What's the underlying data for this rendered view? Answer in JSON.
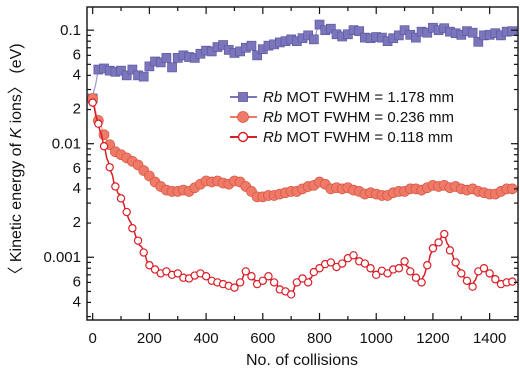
{
  "chart_data": {
    "type": "line",
    "xlabel": "No. of collisions",
    "ylabel_parts": [
      "〈 Kinetic energy of ",
      "K",
      " ions〉 (eV)"
    ],
    "xlim": [
      -20,
      1500
    ],
    "ylim": [
      0.00028,
      0.16
    ],
    "yscale": "log",
    "grid": false,
    "legend_position": "right",
    "x_ticks": [
      0,
      200,
      400,
      600,
      800,
      1000,
      1200,
      1400
    ],
    "x_tick_labels": [
      "0",
      "200",
      "400",
      "600",
      "800",
      "1000",
      "1200",
      "1400"
    ],
    "y_major_ticks": [
      0.001,
      0.01,
      0.1
    ],
    "y_major_labels": [
      "0.001",
      "0.01",
      "0.1"
    ],
    "y_minor_labeled": [
      {
        "value": 0.0004,
        "label": "4"
      },
      {
        "value": 0.0006,
        "label": "6"
      },
      {
        "value": 0.002,
        "label": "2"
      },
      {
        "value": 0.004,
        "label": "4"
      },
      {
        "value": 0.006,
        "label": "6"
      },
      {
        "value": 0.02,
        "label": "2"
      },
      {
        "value": 0.04,
        "label": "4"
      },
      {
        "value": 0.06,
        "label": "6"
      }
    ],
    "series": [
      {
        "name_parts": [
          "Rb",
          " MOT FWHM = 1.178 mm"
        ],
        "color": "#7b76bc",
        "marker": "square",
        "x": [
          0,
          20,
          40,
          60,
          80,
          100,
          120,
          140,
          160,
          180,
          200,
          220,
          240,
          260,
          280,
          300,
          320,
          340,
          360,
          380,
          400,
          420,
          440,
          460,
          480,
          500,
          520,
          540,
          560,
          580,
          600,
          620,
          640,
          660,
          680,
          700,
          720,
          740,
          760,
          780,
          800,
          820,
          840,
          860,
          880,
          900,
          920,
          940,
          960,
          980,
          1000,
          1020,
          1040,
          1060,
          1080,
          1100,
          1120,
          1140,
          1160,
          1180,
          1200,
          1220,
          1240,
          1260,
          1280,
          1300,
          1320,
          1340,
          1360,
          1380,
          1400,
          1420,
          1440,
          1460,
          1480
        ],
        "y": [
          0.025,
          0.045,
          0.046,
          0.044,
          0.043,
          0.044,
          0.04,
          0.045,
          0.04,
          0.039,
          0.048,
          0.053,
          0.052,
          0.057,
          0.047,
          0.057,
          0.06,
          0.058,
          0.057,
          0.062,
          0.066,
          0.065,
          0.071,
          0.074,
          0.067,
          0.063,
          0.065,
          0.07,
          0.073,
          0.06,
          0.068,
          0.073,
          0.075,
          0.078,
          0.08,
          0.083,
          0.08,
          0.085,
          0.09,
          0.083,
          0.112,
          0.1,
          0.103,
          0.092,
          0.088,
          0.092,
          0.1,
          0.098,
          0.086,
          0.085,
          0.087,
          0.086,
          0.08,
          0.085,
          0.09,
          0.1,
          0.091,
          0.086,
          0.097,
          0.095,
          0.105,
          0.1,
          0.104,
          0.097,
          0.094,
          0.091,
          0.098,
          0.095,
          0.079,
          0.09,
          0.091,
          0.094,
          0.09,
          0.097,
          0.098
        ]
      },
      {
        "name_parts": [
          "Rb",
          " MOT FWHM = 0.236 mm"
        ],
        "color": "#ef7a68",
        "marker": "circle",
        "x": [
          0,
          20,
          40,
          60,
          80,
          100,
          120,
          140,
          160,
          180,
          200,
          220,
          240,
          260,
          280,
          300,
          320,
          340,
          360,
          380,
          400,
          420,
          440,
          460,
          480,
          500,
          520,
          540,
          560,
          580,
          600,
          620,
          640,
          660,
          680,
          700,
          720,
          740,
          760,
          780,
          800,
          820,
          840,
          860,
          880,
          900,
          920,
          940,
          960,
          980,
          1000,
          1020,
          1040,
          1060,
          1080,
          1100,
          1120,
          1140,
          1160,
          1180,
          1200,
          1220,
          1240,
          1260,
          1280,
          1300,
          1320,
          1340,
          1360,
          1380,
          1400,
          1420,
          1440,
          1460,
          1480
        ],
        "y": [
          0.025,
          0.016,
          0.012,
          0.0098,
          0.0085,
          0.008,
          0.0075,
          0.007,
          0.0065,
          0.0058,
          0.0052,
          0.0046,
          0.0042,
          0.0039,
          0.0038,
          0.0038,
          0.0039,
          0.0038,
          0.0041,
          0.0044,
          0.0047,
          0.0046,
          0.0047,
          0.0045,
          0.0044,
          0.0047,
          0.0046,
          0.0042,
          0.0038,
          0.0034,
          0.0034,
          0.0035,
          0.0035,
          0.0036,
          0.0037,
          0.0038,
          0.0038,
          0.004,
          0.0042,
          0.0043,
          0.0046,
          0.0044,
          0.004,
          0.0041,
          0.004,
          0.0041,
          0.0039,
          0.0038,
          0.0036,
          0.0037,
          0.0036,
          0.0035,
          0.0035,
          0.0037,
          0.0038,
          0.0038,
          0.004,
          0.004,
          0.0039,
          0.0041,
          0.0043,
          0.0042,
          0.0043,
          0.0041,
          0.0042,
          0.004,
          0.0039,
          0.004,
          0.0038,
          0.0037,
          0.0036,
          0.0036,
          0.0038,
          0.004,
          0.004
        ]
      },
      {
        "name_parts": [
          "Rb",
          " MOT FWHM = 0.118 mm"
        ],
        "color": "#d91f26",
        "marker": "open-circle",
        "x": [
          0,
          20,
          40,
          60,
          80,
          100,
          120,
          140,
          160,
          180,
          200,
          220,
          240,
          260,
          280,
          300,
          320,
          340,
          360,
          380,
          400,
          420,
          440,
          460,
          480,
          500,
          520,
          540,
          560,
          580,
          600,
          620,
          640,
          660,
          680,
          700,
          720,
          740,
          760,
          780,
          800,
          820,
          840,
          860,
          880,
          900,
          920,
          940,
          960,
          980,
          1000,
          1020,
          1040,
          1060,
          1080,
          1100,
          1120,
          1140,
          1160,
          1180,
          1200,
          1220,
          1240,
          1260,
          1280,
          1300,
          1320,
          1340,
          1360,
          1380,
          1400,
          1420,
          1440,
          1460,
          1480
        ],
        "y": [
          0.023,
          0.015,
          0.0095,
          0.0062,
          0.0042,
          0.0033,
          0.0025,
          0.0018,
          0.0014,
          0.0011,
          0.00085,
          0.00078,
          0.00072,
          0.00075,
          0.0007,
          0.00072,
          0.00066,
          0.00065,
          0.00069,
          0.00072,
          0.00068,
          0.00062,
          0.0006,
          0.00058,
          0.00056,
          0.00054,
          0.0006,
          0.00075,
          0.00068,
          0.00058,
          0.00062,
          0.00068,
          0.0006,
          0.00052,
          0.0005,
          0.00047,
          0.0006,
          0.00065,
          0.0006,
          0.00074,
          0.0008,
          0.00087,
          0.0009,
          0.00082,
          0.00088,
          0.00098,
          0.00104,
          0.00092,
          0.00088,
          0.0008,
          0.0007,
          0.00076,
          0.00072,
          0.00078,
          0.0008,
          0.00092,
          0.00075,
          0.00066,
          0.0006,
          0.00085,
          0.0012,
          0.00135,
          0.0016,
          0.00115,
          0.0009,
          0.00072,
          0.00062,
          0.00055,
          0.00075,
          0.0008,
          0.00072,
          0.00064,
          0.00058,
          0.0006,
          0.00061
        ]
      }
    ]
  }
}
